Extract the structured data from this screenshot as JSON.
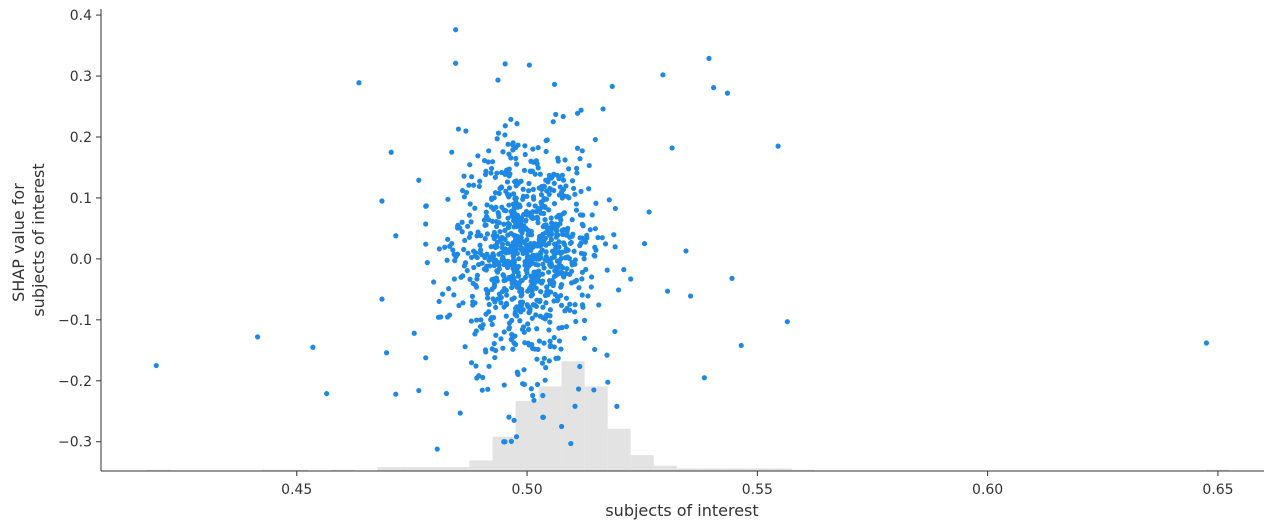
{
  "chart_data": {
    "type": "scatter",
    "xlabel": "subjects of interest",
    "ylabel_lines": [
      "SHAP value for",
      "subjects of interest"
    ],
    "xlim": [
      0.4075,
      0.66
    ],
    "ylim": [
      -0.348,
      0.41
    ],
    "xticks": [
      0.45,
      0.5,
      0.55,
      0.6,
      0.65
    ],
    "xtick_labels": [
      "0.45",
      "0.50",
      "0.55",
      "0.60",
      "0.65"
    ],
    "yticks": [
      -0.3,
      -0.2,
      -0.1,
      0.0,
      0.1,
      0.2,
      0.3,
      0.4
    ],
    "ytick_labels": [
      "−0.3",
      "−0.2",
      "−0.1",
      "0.0",
      "0.1",
      "0.2",
      "0.3",
      "0.4"
    ],
    "grid": false,
    "point_color": "#1E88E5",
    "histogram_color": "#E3E3E3",
    "histogram": {
      "bin_start": 0.4175,
      "bin_width": 0.005,
      "relative_heights": [
        0.01,
        0,
        0,
        0,
        0,
        0.01,
        0.01,
        0,
        0.01,
        0,
        0.03,
        0.03,
        0.03,
        0.03,
        0.08,
        0.26,
        0.53,
        0.64,
        0.83,
        0.64,
        0.32,
        0.12,
        0.04,
        0.02,
        0.02,
        0.02,
        0.02,
        0.02,
        0.01,
        0,
        0,
        0,
        0,
        0,
        0,
        0,
        0,
        0,
        0,
        0,
        0,
        0,
        0,
        0,
        0,
        0,
        0.01
      ]
    },
    "outlier_points": [
      {
        "x": 0.4195,
        "y": -0.175
      },
      {
        "x": 0.4415,
        "y": -0.128
      },
      {
        "x": 0.4535,
        "y": -0.145
      },
      {
        "x": 0.4565,
        "y": -0.221
      },
      {
        "x": 0.4635,
        "y": 0.289
      },
      {
        "x": 0.4845,
        "y": 0.376
      },
      {
        "x": 0.4845,
        "y": 0.321
      },
      {
        "x": 0.4805,
        "y": -0.312
      },
      {
        "x": 0.4855,
        "y": -0.253
      },
      {
        "x": 0.4685,
        "y": 0.095
      },
      {
        "x": 0.4705,
        "y": 0.175
      },
      {
        "x": 0.4715,
        "y": 0.038
      },
      {
        "x": 0.4685,
        "y": -0.066
      },
      {
        "x": 0.4695,
        "y": -0.154
      },
      {
        "x": 0.4715,
        "y": -0.222
      },
      {
        "x": 0.4765,
        "y": -0.216
      },
      {
        "x": 0.4755,
        "y": -0.122
      },
      {
        "x": 0.4765,
        "y": 0.129
      },
      {
        "x": 0.5005,
        "y": 0.318
      },
      {
        "x": 0.5015,
        "y": -0.232
      },
      {
        "x": 0.5075,
        "y": -0.275
      },
      {
        "x": 0.5095,
        "y": -0.303
      },
      {
        "x": 0.5145,
        "y": -0.215
      },
      {
        "x": 0.5195,
        "y": -0.242
      },
      {
        "x": 0.5185,
        "y": 0.283
      },
      {
        "x": 0.5165,
        "y": 0.246
      },
      {
        "x": 0.5225,
        "y": -0.033
      },
      {
        "x": 0.5265,
        "y": 0.077
      },
      {
        "x": 0.5255,
        "y": 0.025
      },
      {
        "x": 0.5295,
        "y": 0.302
      },
      {
        "x": 0.5305,
        "y": -0.053
      },
      {
        "x": 0.5315,
        "y": 0.182
      },
      {
        "x": 0.5345,
        "y": 0.013
      },
      {
        "x": 0.5355,
        "y": -0.061
      },
      {
        "x": 0.5385,
        "y": -0.195
      },
      {
        "x": 0.5395,
        "y": 0.329
      },
      {
        "x": 0.5405,
        "y": 0.281
      },
      {
        "x": 0.5435,
        "y": 0.272
      },
      {
        "x": 0.5445,
        "y": -0.032
      },
      {
        "x": 0.5465,
        "y": -0.142
      },
      {
        "x": 0.5545,
        "y": 0.185
      },
      {
        "x": 0.5565,
        "y": -0.103
      },
      {
        "x": 0.6475,
        "y": -0.138
      }
    ],
    "main_cluster": {
      "count": 950,
      "x_center": 0.4995,
      "x_sd": 0.0075,
      "y_center": 0.012,
      "y_sd": 0.105,
      "x_range": [
        0.478,
        0.521
      ],
      "y_range": [
        -0.3,
        0.32
      ]
    }
  }
}
